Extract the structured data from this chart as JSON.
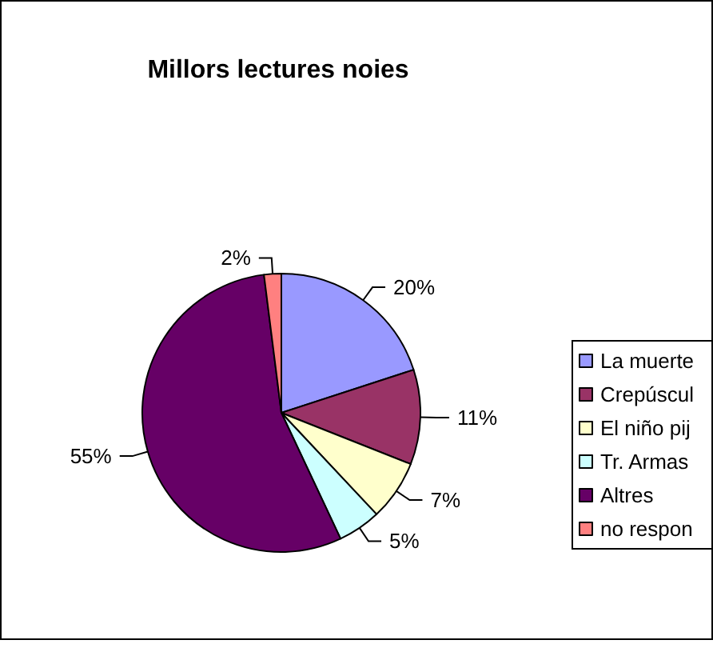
{
  "chart_data": {
    "type": "pie",
    "title": "Millors lectures noies",
    "categories": [
      "La muerte",
      "Crepúscul",
      "El niño pij",
      "Tr. Armas",
      "Altres",
      "no respon"
    ],
    "values": [
      20,
      11,
      7,
      5,
      55,
      2
    ],
    "colors": [
      "#9999ff",
      "#993366",
      "#ffffcc",
      "#ccffff",
      "#660066",
      "#ff8080"
    ],
    "value_labels": [
      "20%",
      "11%",
      "7%",
      "5%",
      "55%",
      "2%"
    ],
    "legend": "right"
  }
}
